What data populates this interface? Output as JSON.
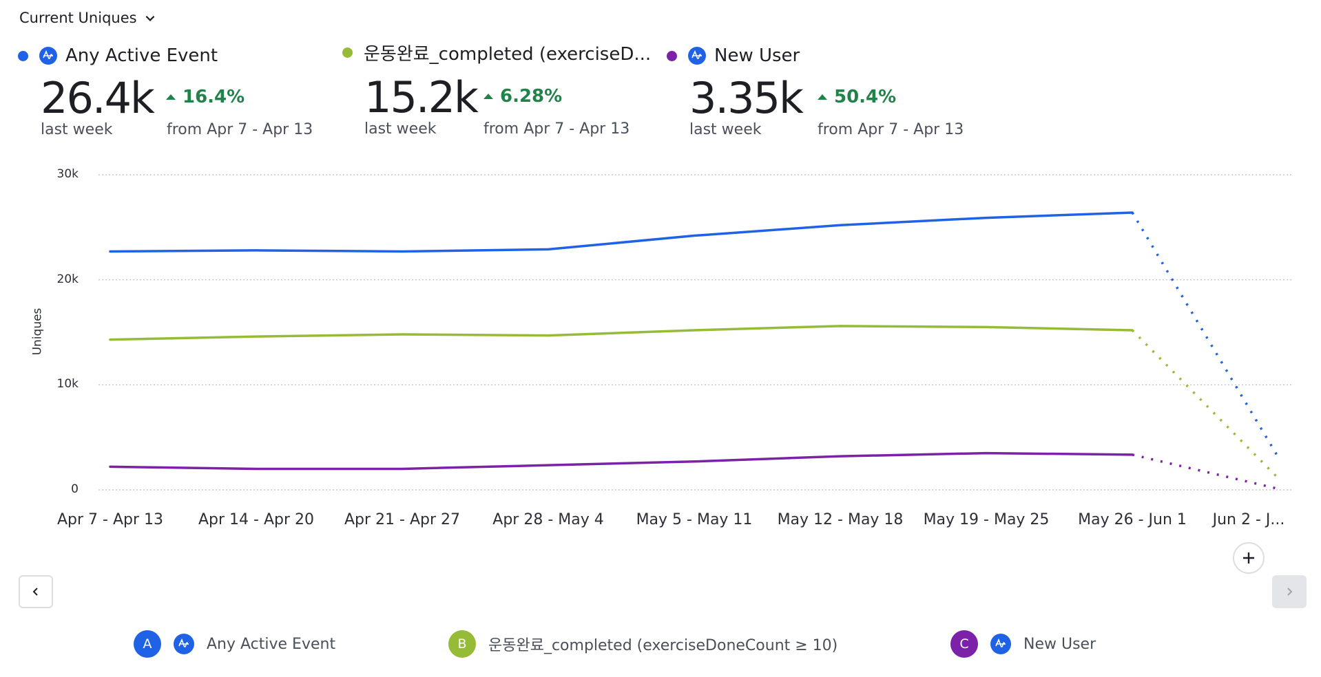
{
  "header": {
    "metric_selector_label": "Current Uniques"
  },
  "metrics": [
    {
      "name": "Any Active Event",
      "color": "#1f62e6",
      "has_amp_icon": true,
      "value": "26.4k",
      "value_caption": "last week",
      "change": "16.4%",
      "change_direction": "up",
      "change_caption": "from Apr 7 - Apr 13"
    },
    {
      "name": "운동완료_completed (exerciseD...",
      "color": "#96bb37",
      "has_amp_icon": false,
      "value": "15.2k",
      "value_caption": "last week",
      "change": "6.28%",
      "change_direction": "up",
      "change_caption": "from Apr 7 - Apr 13"
    },
    {
      "name": "New User",
      "color": "#7c22a8",
      "has_amp_icon": true,
      "value": "3.35k",
      "value_caption": "last week",
      "change": "50.4%",
      "change_direction": "up",
      "change_caption": "from Apr 7 - Apr 13"
    }
  ],
  "colors": {
    "positive_change": "#22834a",
    "gridline": "#c4c8cf"
  },
  "chart_data": {
    "type": "line",
    "title": "",
    "xlabel": "",
    "ylabel": "Uniques",
    "ylim": [
      0,
      30000
    ],
    "yticks": [
      0,
      10000,
      20000,
      30000
    ],
    "ytick_labels": [
      "0",
      "10k",
      "20k",
      "30k"
    ],
    "grid": true,
    "categories": [
      "Apr 7 - Apr 13",
      "Apr 14 - Apr 20",
      "Apr 21 - Apr 27",
      "Apr 28 - May 4",
      "May 5 - May 11",
      "May 12 - May 18",
      "May 19 - May 25",
      "May 26 - Jun 1",
      "Jun 2 - J..."
    ],
    "incomplete_from_index": 7,
    "series": [
      {
        "name": "Any Active Event",
        "color": "#1f62e6",
        "values": [
          22700,
          22800,
          22700,
          22900,
          24200,
          25200,
          25900,
          26400,
          3100
        ]
      },
      {
        "name": "운동완료_completed (exerciseDoneCount ≥ 10)",
        "color": "#96bb37",
        "values": [
          14300,
          14600,
          14800,
          14700,
          15200,
          15600,
          15500,
          15200,
          1100
        ]
      },
      {
        "name": "New User",
        "color": "#7c22a8",
        "values": [
          2200,
          2000,
          2000,
          2350,
          2700,
          3200,
          3500,
          3350,
          100
        ]
      }
    ]
  },
  "controls": {
    "add_label": "+",
    "prev_icon": "chevron-left-icon",
    "next_icon": "chevron-right-icon"
  },
  "legend": [
    {
      "badge": "A",
      "color": "#1f62e6",
      "has_amp_icon": true,
      "label": "Any Active Event"
    },
    {
      "badge": "B",
      "color": "#96bb37",
      "has_amp_icon": false,
      "label": "운동완료_completed (exerciseDoneCount ≥ 10)"
    },
    {
      "badge": "C",
      "color": "#7c22a8",
      "has_amp_icon": true,
      "label": "New User"
    }
  ]
}
